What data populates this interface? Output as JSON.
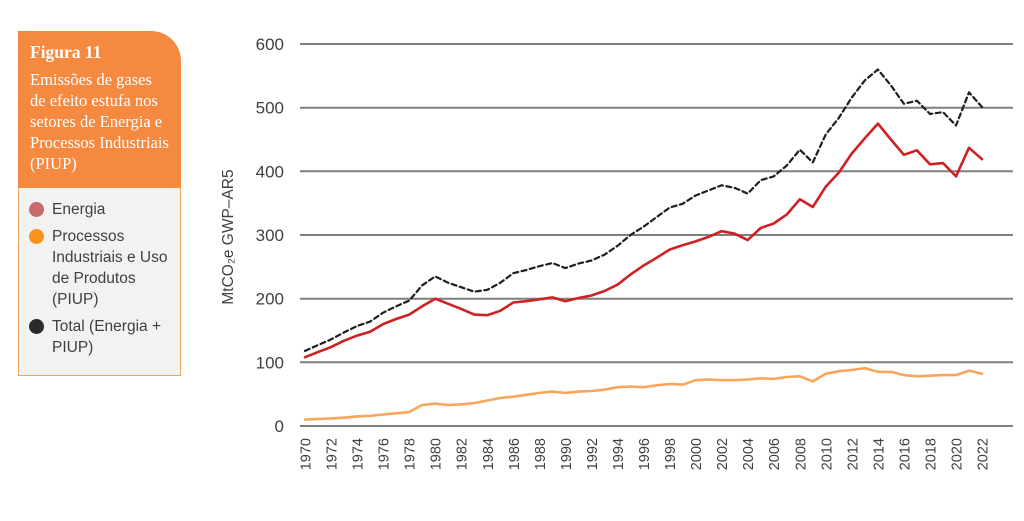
{
  "figure_panel": {
    "title": "Figura 11",
    "subtitle": "Emissões de gases de efeito estufa nos setores de Energia e Processos Industriais (PIUP)",
    "header_bg": "#F68940",
    "legend_bg": "#F2F2F0",
    "legend_border": "#F2A45C",
    "legend": [
      {
        "label": "Energia",
        "color": "#C96A6C"
      },
      {
        "label": "Processos Industriais e Uso de Produtos (PIUP)",
        "color": "#F7941E"
      },
      {
        "label": "Total (Energia + PIUP)",
        "color": "#2B2B2B"
      }
    ]
  },
  "chart_data": {
    "type": "line",
    "title": "",
    "xlabel": "",
    "ylabel": "MtCO₂e GWP–AR5",
    "ylim": [
      0,
      600
    ],
    "yticks": [
      0,
      100,
      200,
      300,
      400,
      500,
      600
    ],
    "grid": "horizontal",
    "legend_position": "left-panel",
    "x": [
      1970,
      1971,
      1972,
      1973,
      1974,
      1975,
      1976,
      1977,
      1978,
      1979,
      1980,
      1981,
      1982,
      1983,
      1984,
      1985,
      1986,
      1987,
      1988,
      1989,
      1990,
      1991,
      1992,
      1993,
      1994,
      1995,
      1996,
      1997,
      1998,
      1999,
      2000,
      2001,
      2002,
      2003,
      2004,
      2005,
      2006,
      2007,
      2008,
      2009,
      2010,
      2011,
      2012,
      2013,
      2014,
      2015,
      2016,
      2017,
      2018,
      2019,
      2020,
      2021,
      2022
    ],
    "x_tick_labels": [
      "1970",
      "1972",
      "1974",
      "1976",
      "1978",
      "1980",
      "1982",
      "1984",
      "1986",
      "1988",
      "1990",
      "1992",
      "1994",
      "1996",
      "1998",
      "2000",
      "2002",
      "2004",
      "2006",
      "2008",
      "2010",
      "2012",
      "2014",
      "2016",
      "2018",
      "2020",
      "2022"
    ],
    "series": [
      {
        "name": "Energia",
        "color": "#CF2124",
        "style": "solid",
        "values": [
          108,
          116,
          124,
          134,
          142,
          148,
          160,
          168,
          175,
          188,
          200,
          192,
          184,
          175,
          174,
          181,
          194,
          196,
          199,
          202,
          196,
          201,
          205,
          212,
          222,
          238,
          252,
          264,
          277,
          284,
          290,
          297,
          306,
          302,
          292,
          311,
          318,
          332,
          356,
          344,
          376,
          398,
          428,
          452,
          475,
          450,
          426,
          433,
          411,
          413,
          392,
          437,
          419
        ]
      },
      {
        "name": "Processos Industriais e Uso de Produtos (PIUP)",
        "color": "#F9A55C",
        "style": "solid",
        "values": [
          10,
          11,
          12,
          13,
          15,
          16,
          18,
          20,
          22,
          33,
          35,
          33,
          34,
          36,
          40,
          44,
          46,
          49,
          52,
          54,
          52,
          54,
          55,
          57,
          61,
          62,
          61,
          64,
          66,
          65,
          72,
          73,
          72,
          72,
          73,
          75,
          74,
          77,
          78,
          70,
          82,
          86,
          88,
          91,
          85,
          85,
          80,
          78,
          79,
          80,
          80,
          87,
          82
        ]
      },
      {
        "name": "Total (Energia + PIUP)",
        "color": "#1F1F1F",
        "style": "dashed",
        "values": [
          118,
          127,
          136,
          147,
          157,
          164,
          178,
          188,
          197,
          221,
          235,
          225,
          218,
          211,
          214,
          225,
          240,
          245,
          251,
          256,
          248,
          255,
          260,
          269,
          283,
          300,
          313,
          328,
          343,
          349,
          362,
          370,
          378,
          374,
          365,
          386,
          392,
          409,
          434,
          414,
          458,
          484,
          516,
          543,
          560,
          535,
          506,
          511,
          490,
          493,
          472,
          524,
          501
        ]
      }
    ]
  }
}
